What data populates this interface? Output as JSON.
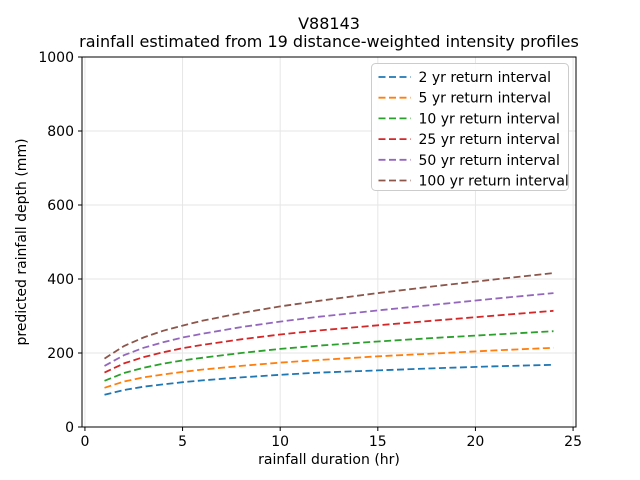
{
  "figure": {
    "background": "#ffffff",
    "plot_bg": "#ffffff",
    "spine_color": "#000000",
    "grid_color": "#e6e6e6",
    "legend_border_color": "#cccccc"
  },
  "chart_data": {
    "type": "line",
    "title_line1": "V88143",
    "title_line2": "rainfall estimated from 19 distance-weighted intensity profiles",
    "xlabel": "rainfall duration (hr)",
    "ylabel": "predicted rainfall depth (mm)",
    "xlim": [
      -0.15,
      25.15
    ],
    "ylim": [
      0,
      1000
    ],
    "xticks": [
      0,
      5,
      10,
      15,
      20,
      25
    ],
    "yticks": [
      0,
      200,
      400,
      600,
      800,
      1000
    ],
    "grid": true,
    "legend_position": "upper right",
    "line_style": "dashed",
    "x": [
      1,
      2,
      3,
      4,
      5,
      6,
      8,
      10,
      12,
      15,
      18,
      21,
      24
    ],
    "series": [
      {
        "name": "2 yr return interval",
        "color": "#1f77b4",
        "values": [
          87,
          100,
          109,
          115,
          121,
          126,
          134,
          141,
          147,
          153,
          159,
          164,
          168
        ]
      },
      {
        "name": "5 yr return interval",
        "color": "#ff7f0e",
        "values": [
          106,
          123,
          134,
          142,
          149,
          155,
          165,
          174,
          181,
          191,
          199,
          207,
          214
        ]
      },
      {
        "name": "10 yr return interval",
        "color": "#2ca02c",
        "values": [
          125,
          146,
          160,
          171,
          180,
          187,
          200,
          211,
          220,
          231,
          241,
          250,
          259
        ]
      },
      {
        "name": "25 yr return interval",
        "color": "#d62728",
        "values": [
          147,
          172,
          189,
          202,
          213,
          222,
          237,
          250,
          261,
          275,
          288,
          301,
          314
        ]
      },
      {
        "name": "50 yr return interval",
        "color": "#9467bd",
        "values": [
          165,
          194,
          214,
          229,
          242,
          252,
          270,
          285,
          298,
          315,
          331,
          347,
          362
        ]
      },
      {
        "name": "100 yr return interval",
        "color": "#8c564b",
        "values": [
          185,
          219,
          242,
          260,
          274,
          287,
          308,
          326,
          341,
          362,
          381,
          399,
          416
        ]
      }
    ]
  }
}
